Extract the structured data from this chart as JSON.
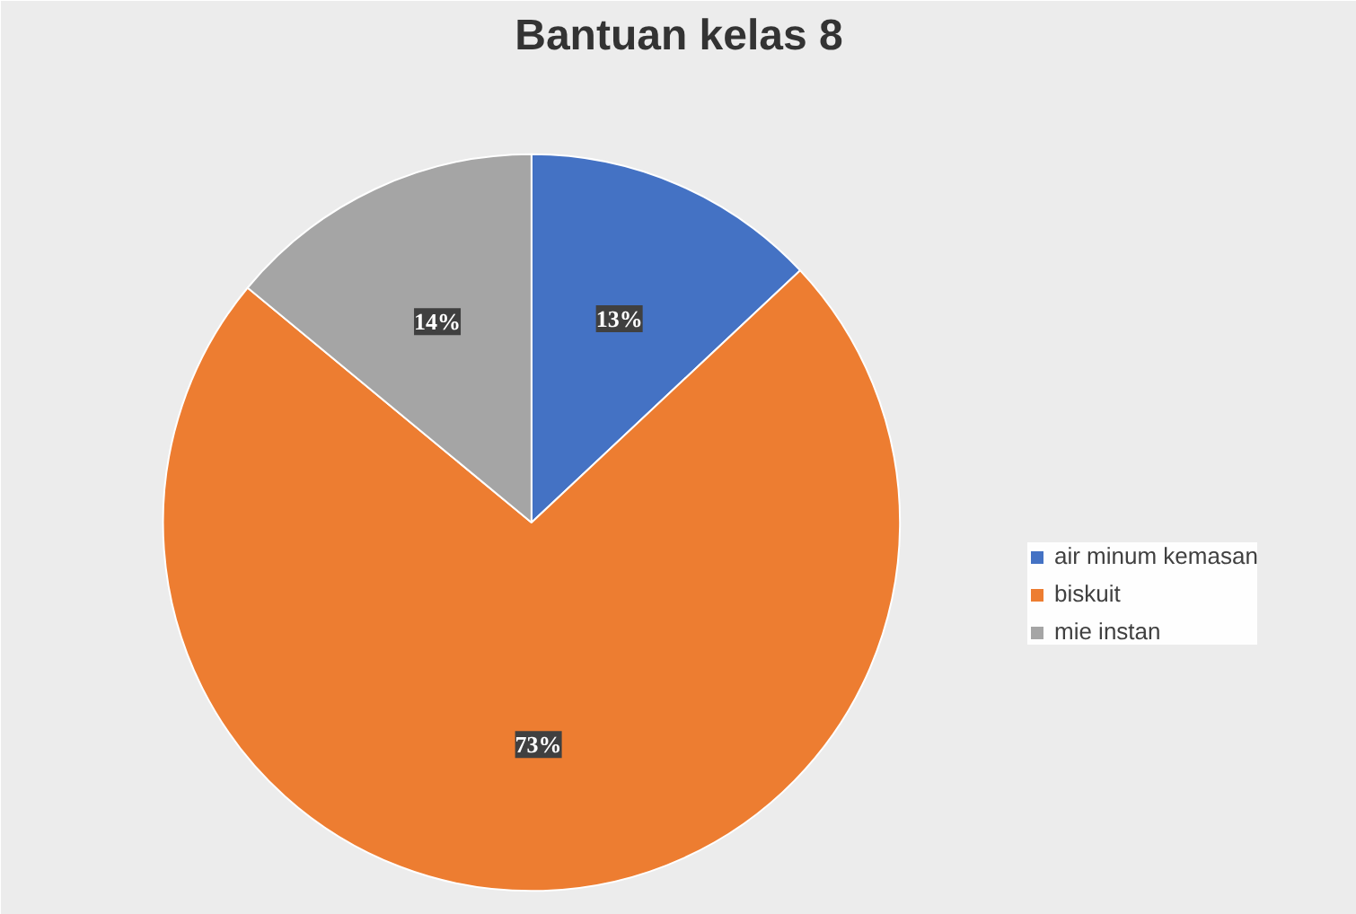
{
  "chart_data": {
    "type": "pie",
    "title": "Bantuan kelas 8",
    "categories": [
      "air minum kemasan",
      "biskuit",
      "mie instan"
    ],
    "values": [
      13,
      73,
      14
    ],
    "colors": [
      "#4472c4",
      "#ed7d31",
      "#a5a5a5"
    ],
    "value_labels": [
      "13%",
      "73%",
      "14%"
    ],
    "legend": "right"
  }
}
